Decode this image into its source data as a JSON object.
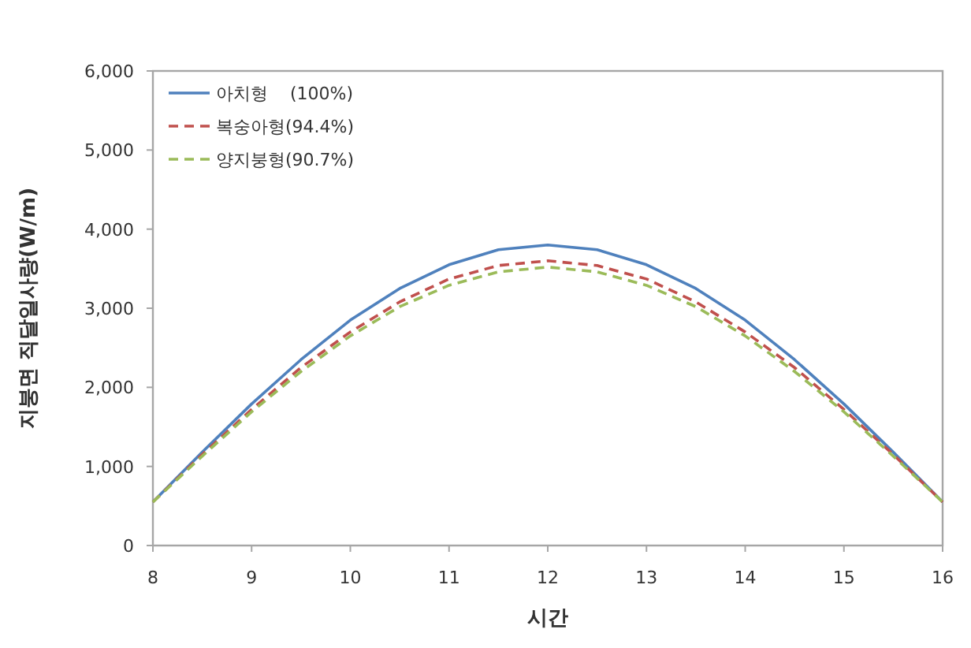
{
  "chart_data": {
    "type": "line",
    "xlabel": "시간",
    "ylabel": "지붕면 직달일사량(W/m)",
    "x": [
      8,
      8.5,
      9,
      9.5,
      10,
      10.5,
      11,
      11.5,
      12,
      12.5,
      13,
      13.5,
      14,
      14.5,
      15,
      15.5,
      16
    ],
    "series": [
      {
        "name": "아치형    (100%)",
        "color": "#4f81bd",
        "line_style": "solid",
        "values": [
          550,
          1180,
          1790,
          2350,
          2850,
          3250,
          3550,
          3740,
          3800,
          3740,
          3550,
          3250,
          2850,
          2350,
          1790,
          1180,
          550
        ]
      },
      {
        "name": "복숭아형(94.4%)",
        "color": "#c0504d",
        "line_style": "dashed",
        "values": [
          550,
          1150,
          1720,
          2250,
          2700,
          3080,
          3370,
          3540,
          3600,
          3540,
          3370,
          3080,
          2700,
          2250,
          1720,
          1150,
          550
        ]
      },
      {
        "name": "양지붕형(90.7%)",
        "color": "#9bbb59",
        "line_style": "dashed",
        "values": [
          550,
          1130,
          1690,
          2200,
          2650,
          3020,
          3290,
          3460,
          3520,
          3460,
          3290,
          3020,
          2650,
          2200,
          1690,
          1130,
          550
        ]
      }
    ],
    "xlim": [
      8,
      16
    ],
    "xticks": [
      8,
      9,
      10,
      11,
      12,
      13,
      14,
      15,
      16
    ],
    "ylim": [
      0,
      6000
    ],
    "yticks": [
      0,
      {
        "value": 1000,
        "label": "1,000"
      },
      {
        "value": 2000,
        "label": "2,000"
      },
      {
        "value": 3000,
        "label": "3,000"
      },
      {
        "value": 4000,
        "label": "4,000"
      },
      {
        "value": 5000,
        "label": "5,000"
      },
      {
        "value": 6000,
        "label": "6,000"
      }
    ],
    "grid": false,
    "legend": "top left",
    "marker": "none"
  }
}
